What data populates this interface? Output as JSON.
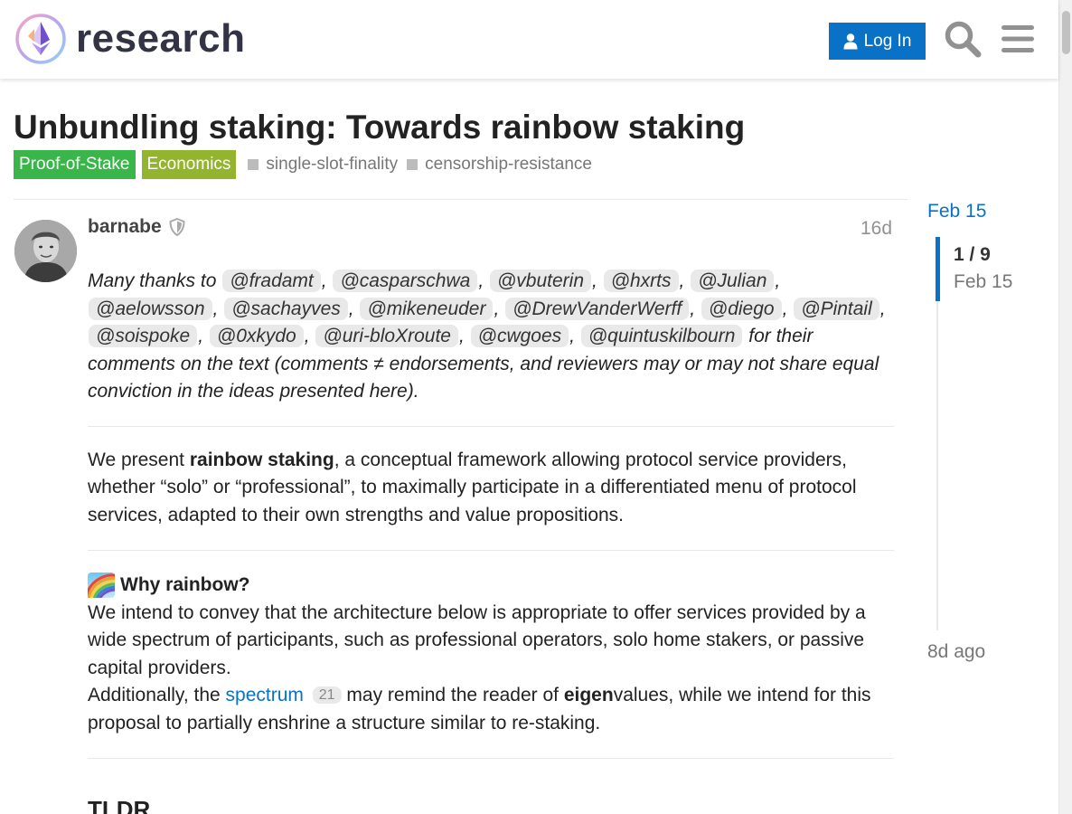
{
  "header": {
    "site_name": "research",
    "login_label": "Log In"
  },
  "topic": {
    "title": "Unbundling staking: Towards rainbow staking",
    "categories": [
      {
        "label": "Proof-of-Stake",
        "color": "#3ab54a"
      },
      {
        "label": "Economics",
        "color": "#92b42e"
      }
    ],
    "tags": [
      "single-slot-finality",
      "censorship-resistance"
    ]
  },
  "post": {
    "username": "barnabe",
    "relative_date": "16d",
    "thanks_prefix": "Many thanks to",
    "mentions": [
      "@fradamt",
      "@casparschwa",
      "@vbuterin",
      "@hxrts",
      "@Julian",
      "@aelowsson",
      "@sachayves",
      "@mikeneuder",
      "@DrewVanderWerff",
      "@diego",
      "@Pintail",
      "@soispoke",
      "@0xkydo",
      "@uri-bloXroute",
      "@cwgoes",
      "@quintuskilbourn"
    ],
    "thanks_suffix": "for their comments on the text (comments ≠ endorsements, and reviewers may or may not share equal conviction in the ideas presented here).",
    "intro_pre": "We present",
    "intro_bold": "rainbow staking",
    "intro_post": ", a conceptual framework allowing protocol service providers, whether “solo” or “professional”, to maximally participate in a differentiated menu of protocol services, adapted to their own strengths and value propositions.",
    "why_heading": "Why rainbow?",
    "why_p1": "We intend to convey that the architecture below is appropriate to offer services provided by a wide spectrum of participants, such as professional operators, solo home stakers, or passive capital providers.",
    "why_p2_pre": "Additionally, the",
    "why_p2_link": "spectrum",
    "why_p2_link_count": "21",
    "why_p2_mid": "may remind the reader of",
    "why_p2_bold": "eigen",
    "why_p2_post": "values, while we intend for this proposal to partially enshrine a structure similar to re-staking.",
    "tldr_heading": "TLDR"
  },
  "timeline": {
    "start_date": "Feb 15",
    "position": "1 / 9",
    "position_date": "Feb 15",
    "end_label": "8d ago",
    "position_fraction": 0.0
  },
  "colors": {
    "accent": "#0a72c6",
    "login_button": "#0a72c6"
  },
  "icons": {
    "login": "user-icon",
    "search": "search-icon",
    "menu": "hamburger-menu-icon",
    "moderator": "shield-icon",
    "heading_emoji": "rainbow-emoji"
  }
}
